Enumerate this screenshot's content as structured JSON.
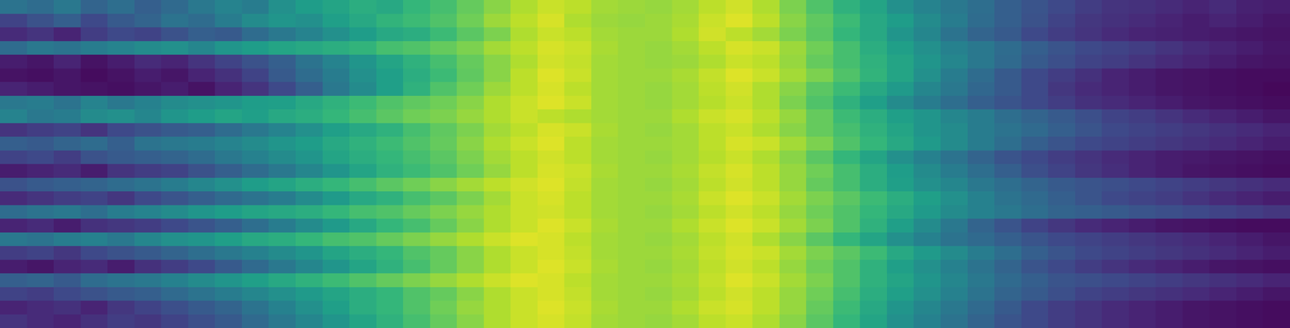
{
  "chart_data": {
    "type": "heatmap",
    "color": "viridis",
    "value_range": [
      0,
      100
    ],
    "tick_labels": false,
    "cells": [
      [
        38,
        35,
        40,
        32,
        36,
        30,
        34,
        40,
        45,
        42,
        50,
        55,
        58,
        62,
        60,
        66,
        70,
        76,
        82,
        88,
        92,
        90,
        86,
        85,
        84,
        86,
        90,
        93,
        88,
        80,
        72,
        64,
        58,
        50,
        45,
        40,
        36,
        30,
        26,
        22,
        18,
        15,
        14,
        12,
        10,
        12,
        9,
        8
      ],
      [
        20,
        25,
        30,
        22,
        28,
        32,
        38,
        35,
        42,
        48,
        52,
        50,
        56,
        60,
        65,
        68,
        72,
        78,
        85,
        90,
        94,
        88,
        85,
        84,
        85,
        87,
        92,
        95,
        90,
        82,
        75,
        68,
        60,
        55,
        48,
        42,
        35,
        30,
        25,
        20,
        16,
        14,
        12,
        10,
        8,
        10,
        8,
        6
      ],
      [
        12,
        15,
        10,
        18,
        22,
        20,
        25,
        30,
        28,
        35,
        40,
        45,
        50,
        55,
        60,
        62,
        68,
        74,
        80,
        88,
        92,
        90,
        86,
        85,
        85,
        88,
        93,
        90,
        86,
        80,
        74,
        66,
        60,
        52,
        46,
        38,
        32,
        28,
        22,
        18,
        15,
        12,
        10,
        9,
        8,
        7,
        6,
        5
      ],
      [
        35,
        40,
        38,
        42,
        45,
        48,
        50,
        46,
        52,
        55,
        58,
        60,
        62,
        65,
        70,
        72,
        76,
        80,
        86,
        90,
        94,
        92,
        87,
        85,
        84,
        86,
        90,
        94,
        92,
        85,
        78,
        70,
        62,
        56,
        50,
        44,
        40,
        35,
        30,
        26,
        22,
        20,
        18,
        15,
        12,
        10,
        8,
        6
      ],
      [
        8,
        6,
        10,
        5,
        8,
        12,
        10,
        15,
        20,
        25,
        30,
        38,
        45,
        52,
        58,
        64,
        70,
        76,
        82,
        88,
        93,
        91,
        86,
        85,
        84,
        85,
        88,
        92,
        90,
        84,
        76,
        70,
        64,
        58,
        52,
        46,
        40,
        34,
        28,
        24,
        20,
        18,
        15,
        12,
        10,
        8,
        6,
        5
      ],
      [
        5,
        4,
        6,
        3,
        5,
        8,
        6,
        10,
        14,
        20,
        28,
        35,
        42,
        50,
        56,
        62,
        68,
        75,
        82,
        90,
        95,
        92,
        86,
        85,
        85,
        87,
        91,
        95,
        92,
        86,
        80,
        72,
        65,
        58,
        50,
        42,
        35,
        28,
        22,
        18,
        14,
        10,
        8,
        6,
        5,
        4,
        3,
        3
      ],
      [
        10,
        8,
        6,
        5,
        4,
        6,
        8,
        5,
        10,
        15,
        22,
        30,
        40,
        48,
        56,
        64,
        72,
        78,
        85,
        90,
        94,
        90,
        86,
        85,
        84,
        86,
        90,
        93,
        88,
        82,
        74,
        68,
        60,
        54,
        46,
        40,
        33,
        28,
        22,
        16,
        12,
        10,
        8,
        6,
        5,
        4,
        3,
        2
      ],
      [
        40,
        42,
        38,
        45,
        40,
        44,
        48,
        50,
        52,
        55,
        56,
        60,
        64,
        68,
        72,
        75,
        78,
        82,
        88,
        92,
        95,
        92,
        86,
        85,
        84,
        86,
        89,
        92,
        88,
        80,
        72,
        64,
        56,
        48,
        42,
        36,
        30,
        26,
        22,
        18,
        14,
        12,
        10,
        8,
        6,
        5,
        4,
        3
      ],
      [
        45,
        40,
        42,
        48,
        50,
        46,
        52,
        55,
        58,
        56,
        60,
        62,
        66,
        70,
        74,
        78,
        80,
        84,
        88,
        92,
        90,
        88,
        86,
        85,
        85,
        88,
        92,
        94,
        90,
        84,
        76,
        68,
        62,
        56,
        52,
        46,
        42,
        36,
        32,
        28,
        24,
        20,
        18,
        15,
        12,
        10,
        8,
        6
      ],
      [
        15,
        18,
        20,
        15,
        22,
        25,
        28,
        30,
        35,
        40,
        45,
        50,
        56,
        60,
        64,
        70,
        75,
        80,
        86,
        90,
        94,
        92,
        87,
        85,
        84,
        86,
        90,
        92,
        88,
        82,
        76,
        70,
        64,
        58,
        52,
        48,
        42,
        38,
        34,
        30,
        26,
        22,
        20,
        18,
        16,
        14,
        12,
        10
      ],
      [
        30,
        28,
        32,
        35,
        30,
        38,
        40,
        42,
        45,
        48,
        52,
        55,
        60,
        64,
        68,
        72,
        76,
        82,
        88,
        92,
        95,
        90,
        86,
        85,
        85,
        86,
        90,
        94,
        92,
        86,
        80,
        72,
        66,
        60,
        54,
        48,
        42,
        36,
        30,
        26,
        22,
        20,
        18,
        16,
        14,
        12,
        10,
        8
      ],
      [
        20,
        22,
        18,
        25,
        28,
        30,
        32,
        35,
        40,
        44,
        48,
        52,
        58,
        62,
        66,
        70,
        74,
        80,
        86,
        90,
        93,
        90,
        86,
        85,
        84,
        86,
        89,
        92,
        88,
        82,
        74,
        66,
        58,
        50,
        44,
        38,
        32,
        26,
        22,
        18,
        15,
        12,
        10,
        8,
        7,
        6,
        5,
        4
      ],
      [
        8,
        10,
        12,
        8,
        15,
        18,
        20,
        25,
        30,
        35,
        40,
        46,
        52,
        58,
        64,
        68,
        72,
        78,
        84,
        90,
        94,
        92,
        87,
        85,
        85,
        87,
        91,
        94,
        90,
        84,
        78,
        70,
        62,
        55,
        48,
        42,
        36,
        30,
        24,
        20,
        16,
        13,
        10,
        8,
        6,
        5,
        4,
        3
      ],
      [
        25,
        28,
        30,
        32,
        35,
        38,
        42,
        46,
        50,
        55,
        58,
        62,
        66,
        70,
        74,
        78,
        82,
        86,
        90,
        93,
        95,
        91,
        86,
        85,
        84,
        86,
        90,
        93,
        90,
        84,
        76,
        70,
        62,
        56,
        50,
        46,
        40,
        36,
        32,
        28,
        26,
        24,
        22,
        20,
        18,
        16,
        14,
        12
      ],
      [
        12,
        15,
        18,
        20,
        16,
        22,
        26,
        30,
        34,
        38,
        42,
        48,
        54,
        60,
        64,
        70,
        74,
        80,
        86,
        92,
        94,
        90,
        86,
        85,
        85,
        87,
        92,
        95,
        92,
        86,
        80,
        74,
        68,
        62,
        56,
        50,
        44,
        38,
        34,
        30,
        26,
        22,
        20,
        18,
        15,
        12,
        10,
        8
      ],
      [
        35,
        38,
        40,
        36,
        42,
        45,
        48,
        52,
        55,
        58,
        60,
        62,
        66,
        70,
        72,
        76,
        80,
        84,
        88,
        92,
        93,
        90,
        86,
        85,
        84,
        86,
        90,
        93,
        90,
        84,
        78,
        72,
        66,
        60,
        54,
        48,
        44,
        40,
        36,
        32,
        30,
        28,
        26,
        24,
        22,
        20,
        18,
        16
      ],
      [
        10,
        12,
        8,
        14,
        16,
        18,
        22,
        26,
        30,
        36,
        42,
        48,
        54,
        60,
        66,
        70,
        76,
        82,
        88,
        92,
        95,
        92,
        87,
        85,
        85,
        88,
        92,
        95,
        92,
        86,
        80,
        72,
        64,
        56,
        48,
        40,
        32,
        26,
        20,
        16,
        12,
        10,
        8,
        6,
        5,
        4,
        3,
        3
      ],
      [
        40,
        38,
        42,
        44,
        40,
        46,
        50,
        52,
        56,
        60,
        62,
        66,
        70,
        72,
        76,
        80,
        84,
        88,
        92,
        95,
        94,
        90,
        86,
        85,
        84,
        86,
        90,
        93,
        88,
        82,
        74,
        66,
        58,
        50,
        44,
        38,
        34,
        30,
        26,
        22,
        20,
        18,
        16,
        14,
        12,
        10,
        8,
        6
      ],
      [
        18,
        20,
        16,
        22,
        25,
        28,
        32,
        36,
        40,
        44,
        48,
        52,
        58,
        62,
        66,
        72,
        76,
        82,
        88,
        92,
        94,
        91,
        86,
        85,
        85,
        87,
        91,
        94,
        92,
        86,
        80,
        74,
        68,
        60,
        54,
        48,
        42,
        36,
        30,
        26,
        22,
        20,
        18,
        16,
        14,
        12,
        10,
        8
      ],
      [
        8,
        6,
        10,
        12,
        8,
        14,
        18,
        22,
        28,
        34,
        40,
        46,
        52,
        58,
        64,
        70,
        76,
        82,
        88,
        92,
        95,
        92,
        87,
        85,
        84,
        86,
        90,
        93,
        90,
        84,
        78,
        72,
        64,
        56,
        50,
        44,
        38,
        32,
        26,
        22,
        18,
        15,
        12,
        10,
        8,
        6,
        5,
        4
      ],
      [
        30,
        32,
        28,
        35,
        38,
        40,
        44,
        48,
        52,
        56,
        60,
        64,
        68,
        72,
        76,
        80,
        84,
        88,
        92,
        95,
        94,
        90,
        86,
        85,
        85,
        87,
        91,
        95,
        92,
        86,
        80,
        72,
        64,
        58,
        52,
        46,
        40,
        34,
        30,
        26,
        24,
        22,
        20,
        18,
        16,
        14,
        12,
        10
      ],
      [
        20,
        18,
        22,
        25,
        28,
        30,
        34,
        38,
        42,
        46,
        50,
        54,
        58,
        62,
        66,
        72,
        76,
        82,
        88,
        92,
        94,
        91,
        86,
        85,
        84,
        86,
        90,
        93,
        90,
        84,
        78,
        70,
        62,
        56,
        50,
        44,
        38,
        32,
        28,
        24,
        20,
        18,
        16,
        14,
        12,
        10,
        8,
        6
      ],
      [
        10,
        12,
        14,
        10,
        16,
        20,
        24,
        28,
        32,
        38,
        44,
        50,
        56,
        62,
        66,
        72,
        78,
        84,
        88,
        92,
        95,
        92,
        87,
        85,
        85,
        88,
        92,
        94,
        90,
        84,
        76,
        68,
        60,
        52,
        46,
        40,
        34,
        28,
        22,
        18,
        15,
        12,
        10,
        8,
        6,
        5,
        4,
        3
      ],
      [
        15,
        12,
        10,
        14,
        18,
        16,
        20,
        24,
        28,
        34,
        40,
        46,
        52,
        58,
        64,
        70,
        76,
        82,
        88,
        92,
        94,
        91,
        86,
        85,
        84,
        86,
        90,
        92,
        88,
        82,
        74,
        66,
        58,
        50,
        44,
        38,
        32,
        26,
        22,
        18,
        15,
        12,
        10,
        8,
        6,
        5,
        4,
        3
      ]
    ]
  }
}
